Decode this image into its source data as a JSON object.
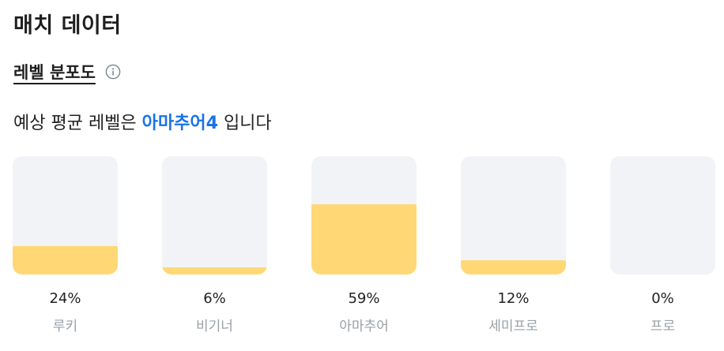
{
  "title": "매치 데이터",
  "subtitle": "레벨 분포도",
  "summary": {
    "prefix": "예상 평균 레벨은 ",
    "level": "아마추어4",
    "suffix": " 입니다"
  },
  "colors": {
    "highlight": "#1a73e8",
    "bar_fill": "#ffd875",
    "bar_track": "#f1f3f6"
  },
  "icons": {
    "info": "info-icon"
  },
  "distribution": [
    {
      "label": "루키",
      "percent_text": "24%",
      "percent": 24
    },
    {
      "label": "비기너",
      "percent_text": "6%",
      "percent": 6
    },
    {
      "label": "아마추어",
      "percent_text": "59%",
      "percent": 59
    },
    {
      "label": "세미프로",
      "percent_text": "12%",
      "percent": 12
    },
    {
      "label": "프로",
      "percent_text": "0%",
      "percent": 0
    }
  ]
}
